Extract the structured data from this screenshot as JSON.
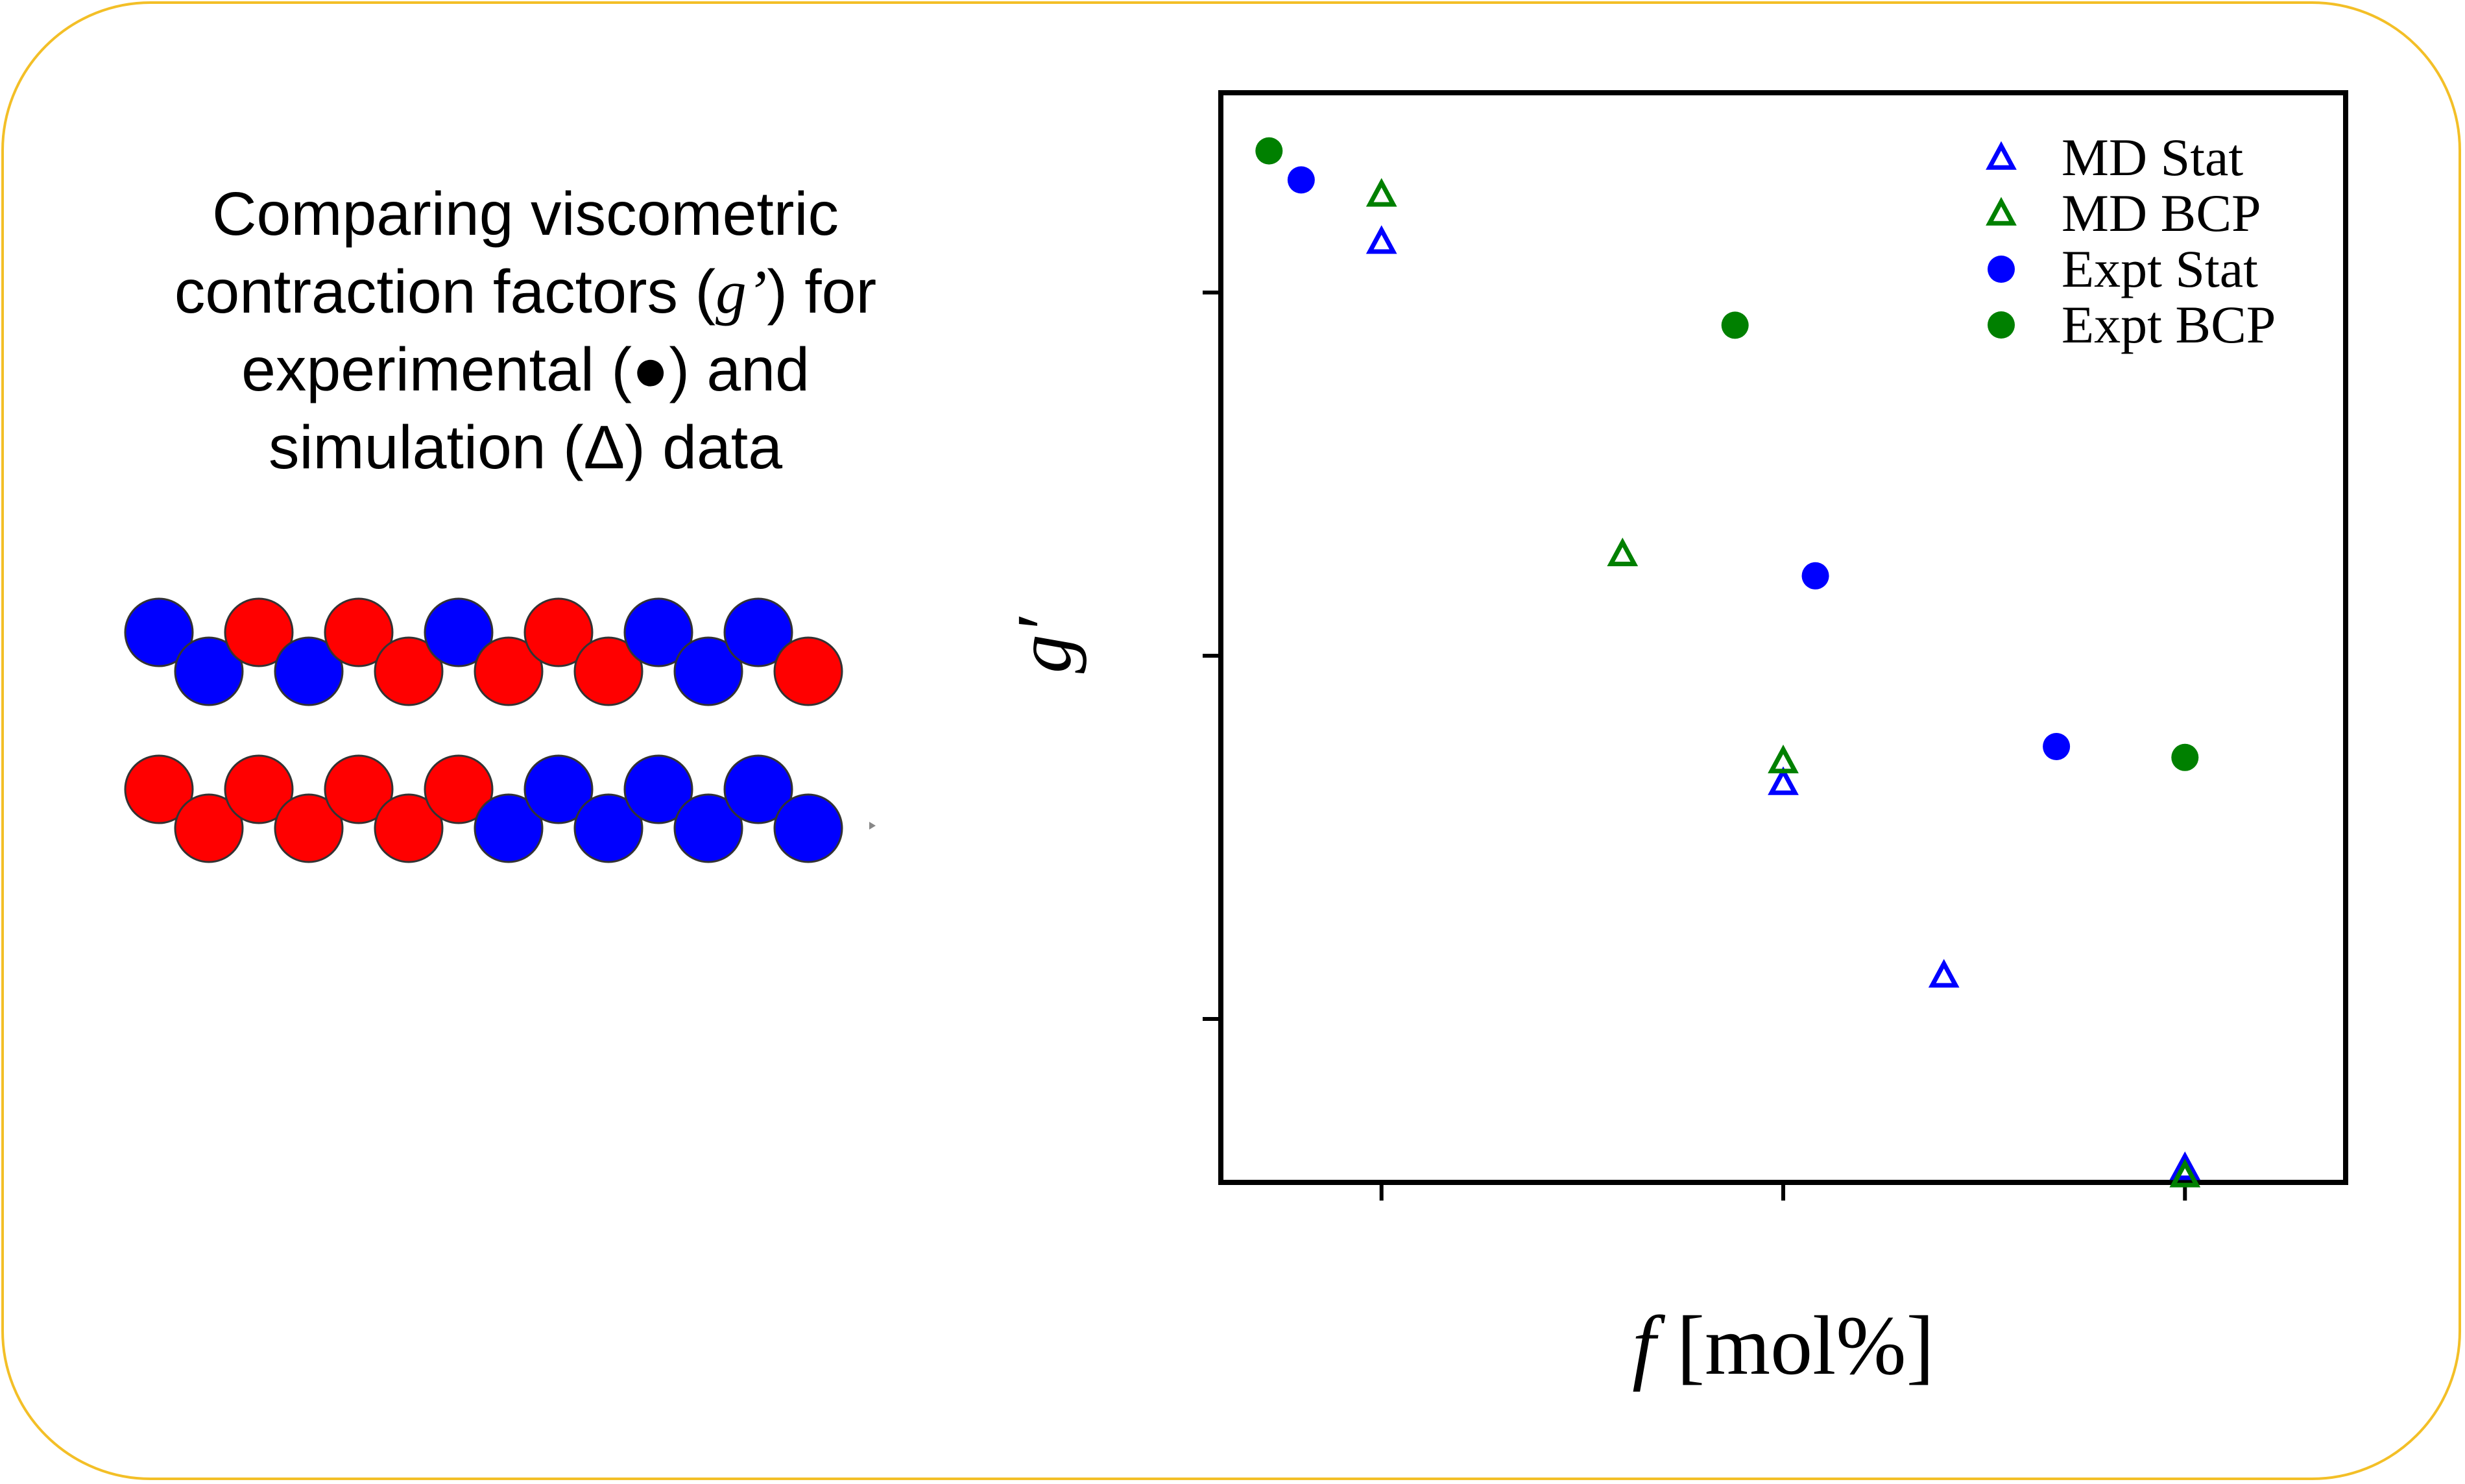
{
  "caption": {
    "line1": "Comparing viscometric",
    "line2_pre": "contraction factors (",
    "line2_sym": "g’",
    "line2_post": ") for",
    "line3": "experimental (●) and",
    "line4": "simulation (Δ) data"
  },
  "chains": {
    "colors": {
      "red": "#ff0000",
      "blue": "#0000ff"
    },
    "row1": [
      "blue",
      "blue",
      "red",
      "blue",
      "red",
      "red",
      "blue",
      "red",
      "red",
      "red",
      "blue",
      "blue",
      "blue",
      "red"
    ],
    "row2": [
      "red",
      "red",
      "red",
      "red",
      "red",
      "red",
      "red",
      "blue",
      "blue",
      "blue",
      "blue",
      "blue",
      "blue",
      "blue"
    ]
  },
  "chart_data": {
    "type": "scatter",
    "xlabel": "f [mol%]",
    "ylabel": "g′",
    "xlim": [
      -0.4,
      2.4
    ],
    "ylim": [
      -0.45,
      2.55
    ],
    "xticks": [
      0,
      1,
      2
    ],
    "yticks": [
      0,
      1,
      2
    ],
    "tick_labels_shown": false,
    "grid": false,
    "legend": "top-right",
    "series": [
      {
        "name": "MD Stat",
        "marker": "triangle-open",
        "color": "#0000ff",
        "points": [
          [
            0,
            2.14
          ],
          [
            1,
            0.65
          ],
          [
            1.4,
            0.12
          ],
          [
            2,
            -0.41
          ]
        ]
      },
      {
        "name": "MD BCP",
        "marker": "triangle-open",
        "color": "#008000",
        "points": [
          [
            0,
            2.27
          ],
          [
            0.6,
            1.28
          ],
          [
            1,
            0.71
          ],
          [
            2,
            -0.43
          ]
        ]
      },
      {
        "name": "Expt Stat",
        "marker": "circle",
        "color": "#0000ff",
        "points": [
          [
            -0.2,
            2.31
          ],
          [
            1.08,
            1.22
          ],
          [
            1.68,
            0.75
          ]
        ]
      },
      {
        "name": "Expt BCP",
        "marker": "circle",
        "color": "#008000",
        "points": [
          [
            -0.28,
            2.39
          ],
          [
            0.88,
            1.91
          ],
          [
            2,
            0.72
          ]
        ]
      }
    ]
  }
}
